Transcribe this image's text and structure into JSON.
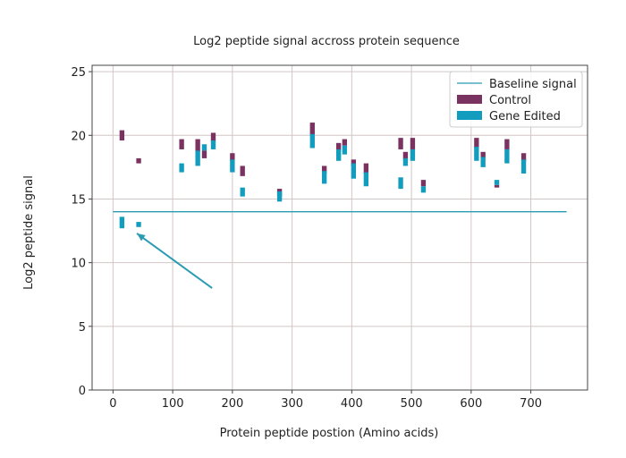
{
  "chart_data": {
    "type": "bar",
    "title": "Log2 peptide signal accross protein sequence",
    "xlabel": "Protein peptide postion (Amino acids)",
    "ylabel": "Log2 peptide signal",
    "xlim": [
      -35,
      795
    ],
    "ylim": [
      0,
      25.5
    ],
    "xticks": [
      0,
      100,
      200,
      300,
      400,
      500,
      600,
      700
    ],
    "yticks": [
      0,
      5,
      10,
      15,
      20,
      25
    ],
    "grid": true,
    "legend": "top-right",
    "baseline": {
      "name": "Baseline signal",
      "x": [
        0,
        760
      ],
      "y": 14.0,
      "color": "#2b9cb3"
    },
    "series": [
      {
        "name": "Control",
        "color": "#7a3361",
        "boxes": [
          {
            "x": 15,
            "low": 19.6,
            "high": 20.4
          },
          {
            "x": 43,
            "low": 17.8,
            "high": 18.2
          },
          {
            "x": 115,
            "low": 18.9,
            "high": 19.7
          },
          {
            "x": 142,
            "low": 18.7,
            "high": 19.7
          },
          {
            "x": 153,
            "low": 18.2,
            "high": 18.8
          },
          {
            "x": 168,
            "low": 19.5,
            "high": 20.2
          },
          {
            "x": 200,
            "low": 18.0,
            "high": 18.6
          },
          {
            "x": 217,
            "low": 16.8,
            "high": 17.6
          },
          {
            "x": 279,
            "low": 15.2,
            "high": 15.8
          },
          {
            "x": 334,
            "low": 20.0,
            "high": 21.0
          },
          {
            "x": 354,
            "low": 17.0,
            "high": 17.6
          },
          {
            "x": 378,
            "low": 18.8,
            "high": 19.4
          },
          {
            "x": 388,
            "low": 19.2,
            "high": 19.7
          },
          {
            "x": 403,
            "low": 17.6,
            "high": 18.1
          },
          {
            "x": 424,
            "low": 17.0,
            "high": 17.8
          },
          {
            "x": 482,
            "low": 18.9,
            "high": 19.8
          },
          {
            "x": 490,
            "low": 18.1,
            "high": 18.7
          },
          {
            "x": 502,
            "low": 18.9,
            "high": 19.8
          },
          {
            "x": 520,
            "low": 16.0,
            "high": 16.5
          },
          {
            "x": 609,
            "low": 19.0,
            "high": 19.8
          },
          {
            "x": 620,
            "low": 18.2,
            "high": 18.7
          },
          {
            "x": 643,
            "low": 15.9,
            "high": 16.1
          },
          {
            "x": 660,
            "low": 18.9,
            "high": 19.7
          },
          {
            "x": 688,
            "low": 18.0,
            "high": 18.6
          }
        ]
      },
      {
        "name": "Gene Edited",
        "color": "#129cbd",
        "boxes": [
          {
            "x": 15,
            "low": 12.7,
            "high": 13.6
          },
          {
            "x": 43,
            "low": 12.8,
            "high": 13.2
          },
          {
            "x": 115,
            "low": 17.1,
            "high": 17.8
          },
          {
            "x": 142,
            "low": 17.6,
            "high": 18.8
          },
          {
            "x": 153,
            "low": 18.8,
            "high": 19.3
          },
          {
            "x": 168,
            "low": 18.9,
            "high": 19.6
          },
          {
            "x": 200,
            "low": 17.1,
            "high": 18.1
          },
          {
            "x": 217,
            "low": 15.2,
            "high": 15.9
          },
          {
            "x": 279,
            "low": 14.8,
            "high": 15.6
          },
          {
            "x": 334,
            "low": 19.0,
            "high": 20.1
          },
          {
            "x": 354,
            "low": 16.2,
            "high": 17.2
          },
          {
            "x": 378,
            "low": 18.0,
            "high": 18.9
          },
          {
            "x": 388,
            "low": 18.5,
            "high": 19.2
          },
          {
            "x": 403,
            "low": 16.6,
            "high": 17.8
          },
          {
            "x": 424,
            "low": 16.0,
            "high": 17.1
          },
          {
            "x": 482,
            "low": 15.8,
            "high": 16.7
          },
          {
            "x": 490,
            "low": 17.6,
            "high": 18.2
          },
          {
            "x": 502,
            "low": 18.0,
            "high": 18.9
          },
          {
            "x": 520,
            "low": 15.5,
            "high": 16.0
          },
          {
            "x": 609,
            "low": 18.0,
            "high": 19.1
          },
          {
            "x": 620,
            "low": 17.5,
            "high": 18.3
          },
          {
            "x": 643,
            "low": 16.1,
            "high": 16.5
          },
          {
            "x": 660,
            "low": 17.8,
            "high": 18.9
          },
          {
            "x": 688,
            "low": 17.0,
            "high": 18.1
          }
        ]
      }
    ],
    "annotations": [
      {
        "type": "arrow",
        "from": [
          166,
          8.0
        ],
        "to": [
          40,
          12.3
        ],
        "color": "#2b9cb3"
      }
    ]
  }
}
